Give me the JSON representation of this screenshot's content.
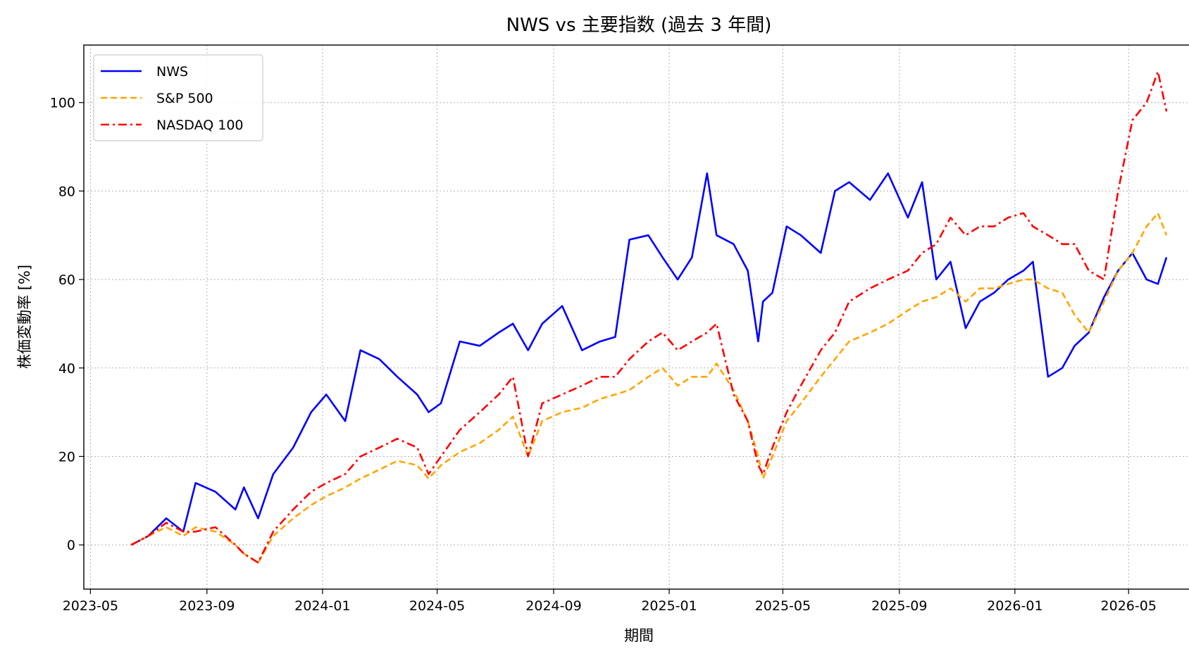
{
  "chart_data": {
    "type": "line",
    "title": "NWS vs 主要指数 (過去 3 年間)",
    "xlabel": "期間",
    "ylabel": "株価変動率 [%]",
    "x_ticks": [
      "2023-05",
      "2023-09",
      "2024-01",
      "2024-05",
      "2024-09",
      "2025-01",
      "2025-05",
      "2025-09",
      "2026-01",
      "2026-05"
    ],
    "y_ticks": [
      0,
      20,
      40,
      60,
      80,
      100
    ],
    "xlim": [
      "2023-04-24",
      "2026-07-09"
    ],
    "ylim": [
      -10,
      113
    ],
    "grid": true,
    "legend_position": "upper-left",
    "x": [
      "2023-06-13",
      "2023-07-01",
      "2023-07-20",
      "2023-08-07",
      "2023-08-20",
      "2023-09-10",
      "2023-10-01",
      "2023-10-10",
      "2023-10-25",
      "2023-11-10",
      "2023-12-01",
      "2023-12-20",
      "2024-01-05",
      "2024-01-25",
      "2024-02-10",
      "2024-03-01",
      "2024-03-20",
      "2024-04-10",
      "2024-04-22",
      "2024-05-05",
      "2024-05-25",
      "2024-06-15",
      "2024-07-05",
      "2024-07-20",
      "2024-08-05",
      "2024-08-20",
      "2024-09-10",
      "2024-10-01",
      "2024-10-20",
      "2024-11-05",
      "2024-11-20",
      "2024-12-10",
      "2024-12-25",
      "2025-01-10",
      "2025-01-25",
      "2025-02-10",
      "2025-02-20",
      "2025-03-10",
      "2025-03-25",
      "2025-04-05",
      "2025-04-10",
      "2025-04-20",
      "2025-05-05",
      "2025-05-20",
      "2025-06-10",
      "2025-06-25",
      "2025-07-10",
      "2025-08-01",
      "2025-08-20",
      "2025-09-10",
      "2025-09-25",
      "2025-10-10",
      "2025-10-25",
      "2025-11-10",
      "2025-11-25",
      "2025-12-10",
      "2025-12-25",
      "2026-01-10",
      "2026-01-20",
      "2026-02-05",
      "2026-02-20",
      "2026-03-05",
      "2026-03-20",
      "2026-04-05",
      "2026-04-20",
      "2026-05-05",
      "2026-05-20",
      "2026-06-01",
      "2026-06-10"
    ],
    "series": [
      {
        "name": "NWS",
        "color": "#0000ff",
        "style": "solid",
        "values": [
          0,
          2,
          6,
          3,
          14,
          12,
          8,
          13,
          6,
          16,
          22,
          30,
          34,
          28,
          44,
          42,
          38,
          34,
          30,
          32,
          46,
          45,
          48,
          50,
          44,
          50,
          54,
          44,
          46,
          47,
          69,
          70,
          65,
          60,
          65,
          84,
          70,
          68,
          62,
          46,
          55,
          57,
          72,
          70,
          66,
          80,
          82,
          78,
          84,
          74,
          82,
          60,
          64,
          49,
          55,
          57,
          60,
          62,
          64,
          38,
          40,
          45,
          48,
          56,
          62,
          66,
          60,
          59,
          65
        ]
      },
      {
        "name": "S&P 500",
        "color": "#ffa500",
        "style": "dashed",
        "values": [
          0,
          2,
          4,
          2,
          4,
          3,
          0,
          -2,
          -4,
          2,
          6,
          9,
          11,
          13,
          15,
          17,
          19,
          18,
          15,
          18,
          21,
          23,
          26,
          29,
          20,
          28,
          30,
          31,
          33,
          34,
          35,
          38,
          40,
          36,
          38,
          38,
          41,
          35,
          28,
          20,
          15,
          20,
          28,
          32,
          38,
          42,
          46,
          48,
          50,
          53,
          55,
          56,
          58,
          55,
          58,
          58,
          59,
          60,
          60,
          58,
          57,
          52,
          48,
          55,
          62,
          66,
          72,
          75,
          70
        ]
      },
      {
        "name": "NASDAQ 100",
        "color": "#ff0000",
        "style": "dashdot",
        "values": [
          0,
          2,
          5,
          3,
          3,
          4,
          0,
          -2,
          -4,
          3,
          8,
          12,
          14,
          16,
          20,
          22,
          24,
          22,
          16,
          20,
          26,
          30,
          34,
          38,
          20,
          32,
          34,
          36,
          38,
          38,
          42,
          46,
          48,
          44,
          46,
          48,
          50,
          34,
          28,
          18,
          16,
          22,
          30,
          36,
          44,
          48,
          55,
          58,
          60,
          62,
          66,
          68,
          74,
          70,
          72,
          72,
          74,
          75,
          72,
          70,
          68,
          68,
          62,
          60,
          80,
          96,
          100,
          107,
          98
        ]
      }
    ]
  }
}
